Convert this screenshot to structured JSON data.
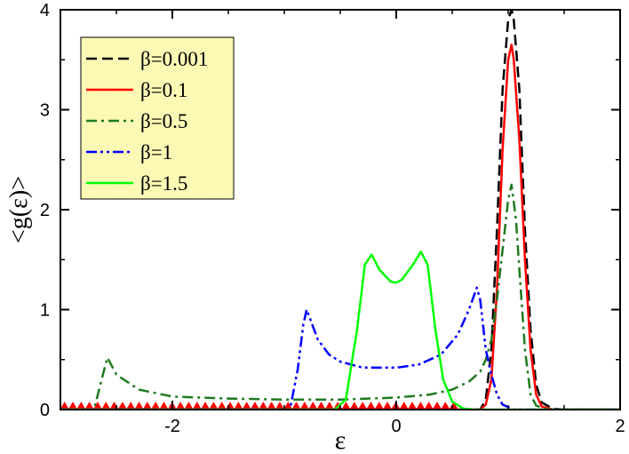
{
  "chart_data": {
    "type": "line",
    "xlabel": "ε",
    "ylabel": "<g(ε)>",
    "xlim": [
      -3,
      2
    ],
    "ylim": [
      0,
      4
    ],
    "xticks": [
      -2,
      0,
      2
    ],
    "xtick_labels": [
      "-2",
      "0",
      "2"
    ],
    "yticks": [
      0,
      1,
      2,
      3,
      4
    ],
    "ytick_labels": [
      "0",
      "1",
      "2",
      "3",
      "4"
    ],
    "grid": false,
    "legend_position": "top-left",
    "series": [
      {
        "name": "β=0.001",
        "color": "#000000",
        "dash": "dashed",
        "x": [
          -3,
          0.75,
          0.8,
          0.85,
          0.9,
          0.95,
          1.0,
          1.03,
          1.05,
          1.1,
          1.15,
          1.2,
          1.25,
          1.3,
          1.4,
          1.5,
          2
        ],
        "y": [
          0,
          0,
          0.1,
          0.6,
          1.8,
          3.2,
          3.9,
          4.0,
          3.9,
          3.2,
          1.8,
          0.8,
          0.25,
          0.07,
          0.01,
          0,
          0
        ]
      },
      {
        "name": "β=0.1",
        "color": "#ff0000",
        "dash": "solid",
        "x": [
          -3,
          0.75,
          0.8,
          0.85,
          0.9,
          0.95,
          1.0,
          1.03,
          1.05,
          1.1,
          1.15,
          1.2,
          1.25,
          1.3,
          1.4,
          1.5,
          2
        ],
        "y": [
          0,
          0,
          0.05,
          0.3,
          1.2,
          2.6,
          3.5,
          3.65,
          3.5,
          2.7,
          1.5,
          0.6,
          0.15,
          0.03,
          0,
          0,
          0
        ],
        "oscillation": {
          "x_start": -3,
          "x_end": 0.55,
          "amplitude": 0.07,
          "spikes": 48
        }
      },
      {
        "name": "β=0.5",
        "color": "#1f7a1f",
        "dash": "dashdot",
        "x": [
          -3,
          -2.7,
          -2.62,
          -2.58,
          -2.5,
          -2.3,
          -2.0,
          -1.5,
          -1.0,
          -0.5,
          0.0,
          0.3,
          0.5,
          0.65,
          0.75,
          0.8,
          0.85,
          0.9,
          0.95,
          1.0,
          1.03,
          1.07,
          1.1,
          1.15,
          1.2,
          1.25,
          1.35,
          2
        ],
        "y": [
          0,
          0,
          0.35,
          0.52,
          0.35,
          0.2,
          0.13,
          0.11,
          0.1,
          0.1,
          0.12,
          0.15,
          0.2,
          0.28,
          0.38,
          0.5,
          0.7,
          1.1,
          1.6,
          2.1,
          2.25,
          1.9,
          1.4,
          0.6,
          0.15,
          0.04,
          0,
          0
        ]
      },
      {
        "name": "β=1",
        "color": "#0000ff",
        "dash": "dashdotdot",
        "x": [
          -3,
          -0.95,
          -0.88,
          -0.83,
          -0.8,
          -0.75,
          -0.7,
          -0.6,
          -0.5,
          -0.3,
          0.0,
          0.2,
          0.4,
          0.55,
          0.65,
          0.72,
          0.75,
          0.8,
          0.85,
          0.9,
          0.95,
          1.05,
          2
        ],
        "y": [
          0,
          0,
          0.4,
          0.85,
          1.0,
          0.85,
          0.7,
          0.55,
          0.48,
          0.42,
          0.42,
          0.45,
          0.55,
          0.75,
          1.0,
          1.22,
          1.1,
          0.6,
          0.35,
          0.15,
          0.05,
          0,
          0
        ]
      },
      {
        "name": "β=1.5",
        "color": "#00ff00",
        "dash": "solid",
        "x": [
          -3,
          -0.55,
          -0.45,
          -0.35,
          -0.28,
          -0.22,
          -0.15,
          -0.05,
          0.0,
          0.05,
          0.15,
          0.22,
          0.28,
          0.35,
          0.42,
          0.5,
          0.6,
          0.7,
          2
        ],
        "y": [
          0,
          0,
          0.1,
          0.8,
          1.45,
          1.55,
          1.4,
          1.28,
          1.27,
          1.3,
          1.45,
          1.58,
          1.45,
          0.8,
          0.3,
          0.08,
          0.01,
          0,
          0
        ]
      }
    ]
  }
}
